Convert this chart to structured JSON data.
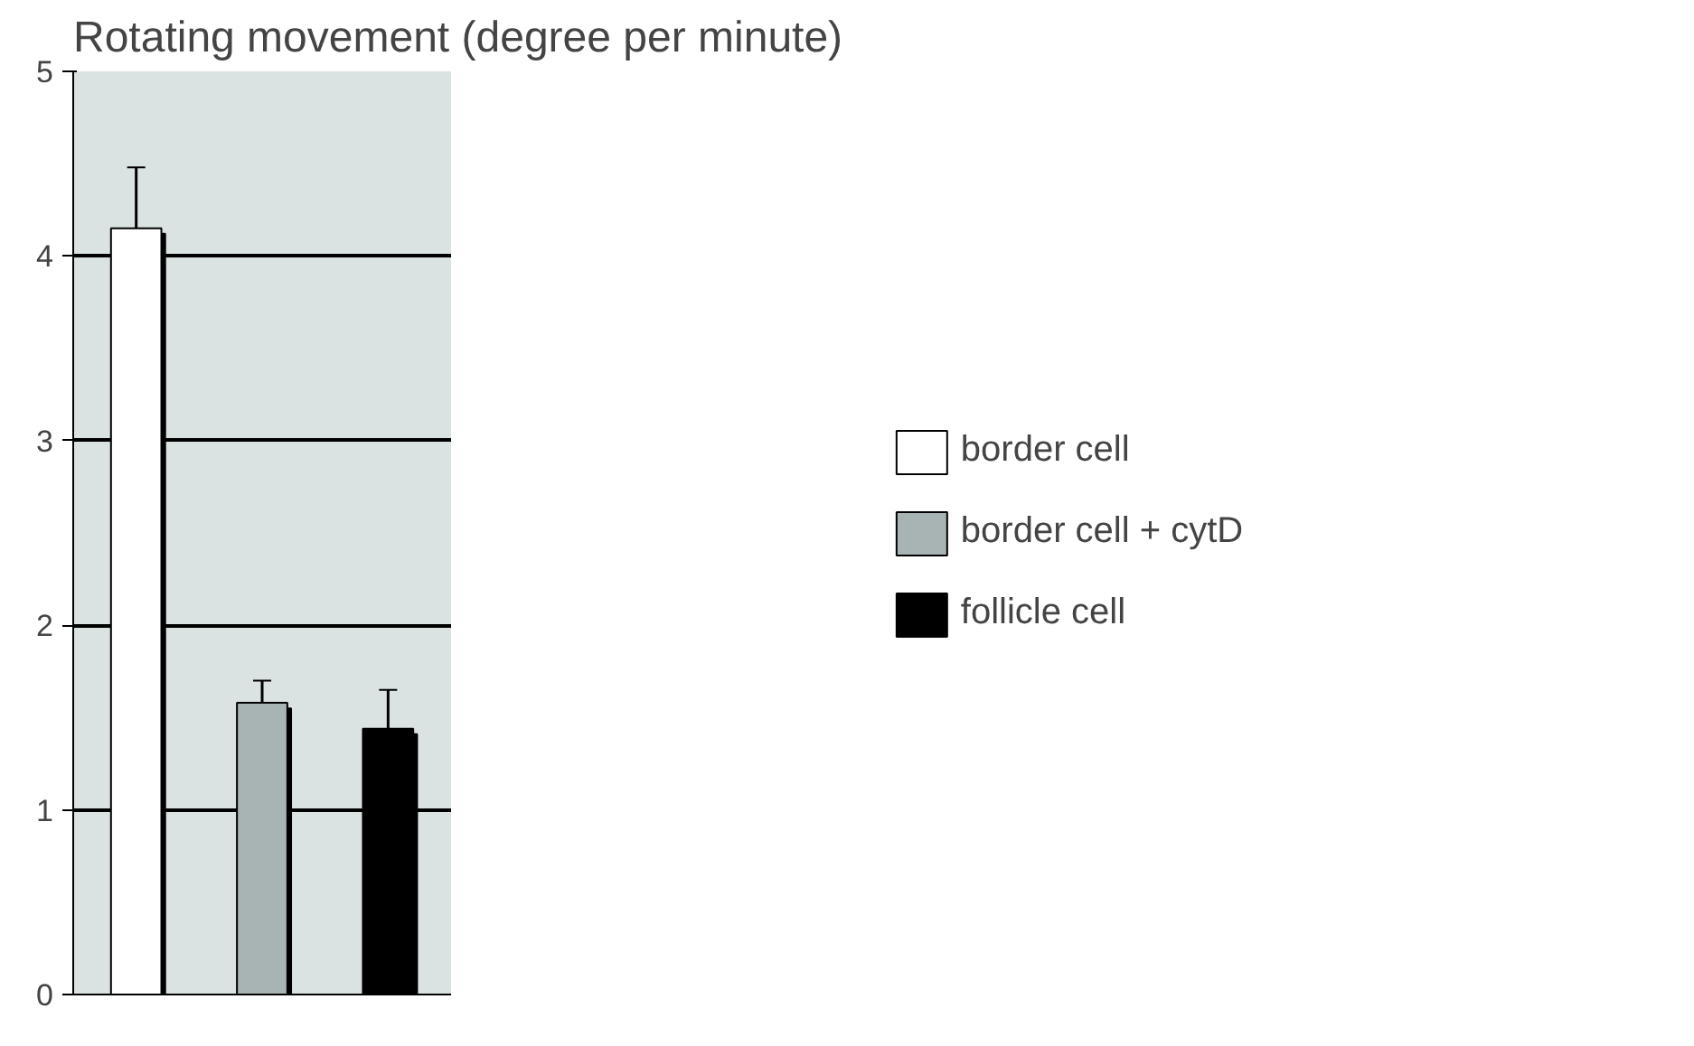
{
  "chart_data": {
    "type": "bar",
    "title": "Rotating movement (degree per minute)",
    "categories": [
      null,
      null,
      null
    ],
    "series": [
      {
        "name": "border cell",
        "color": "#ffffff",
        "values": [
          4.15,
          null,
          null
        ],
        "errors": [
          0.33,
          null,
          null
        ]
      },
      {
        "name": "border cell + cytD",
        "color": "#a8b3b3",
        "values": [
          null,
          1.58,
          null
        ],
        "errors": [
          null,
          0.12,
          null
        ]
      },
      {
        "name": "follicle cell",
        "color": "#000000",
        "values": [
          null,
          null,
          1.44
        ],
        "errors": [
          null,
          null,
          0.21
        ]
      }
    ],
    "ylim": [
      0,
      5
    ],
    "yticks": [
      0,
      1,
      2,
      3,
      4,
      5
    ],
    "grid": "y",
    "legend": "right",
    "tick_labels": "y"
  }
}
